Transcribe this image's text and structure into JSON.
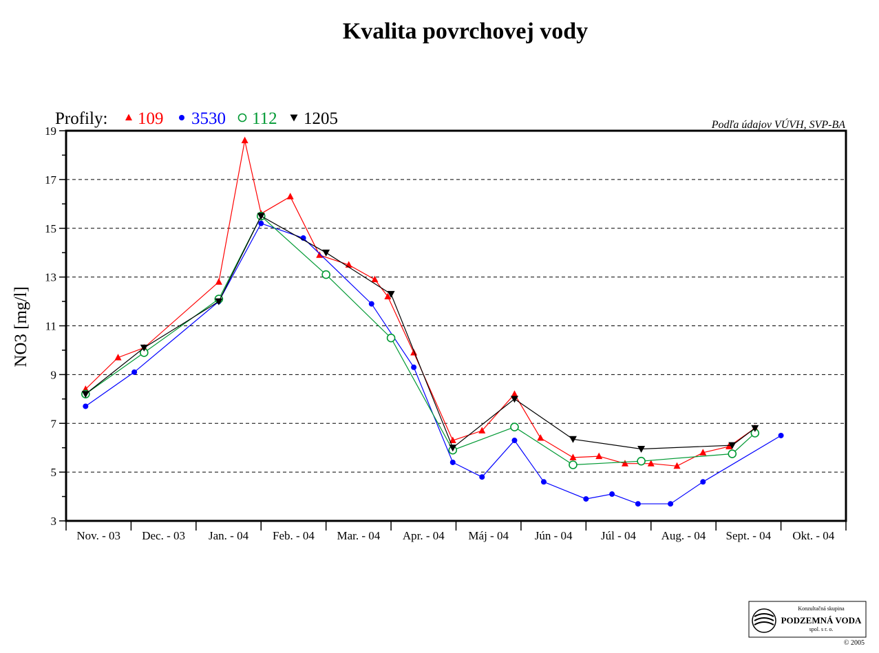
{
  "chart_data": {
    "type": "line",
    "title": "Kvalita povrchovej vody",
    "ylabel": "NO3 [mg/l]",
    "xlabel": "",
    "ylim": [
      3,
      19
    ],
    "yticks": [
      3,
      5,
      7,
      9,
      11,
      13,
      15,
      17,
      19
    ],
    "xlim": [
      0,
      12
    ],
    "categories": [
      "Nov. - 03",
      "Dec. - 03",
      "Jan. - 04",
      "Feb. - 04",
      "Mar. - 04",
      "Apr. - 04",
      "Máj - 04",
      "Jún - 04",
      "Júl - 04",
      "Aug. - 04",
      "Sept. - 04",
      "Okt. - 04"
    ],
    "grid": "horizontal dashed",
    "legend_prefix": "Profily:",
    "source_note": "Podľa údajov VÚVH, SVP-BA",
    "series": [
      {
        "name": "109",
        "color": "#ff0000",
        "marker": "triangle-up",
        "points": [
          [
            0.3,
            8.4
          ],
          [
            0.8,
            9.7
          ],
          [
            1.2,
            10.1
          ],
          [
            2.35,
            12.8
          ],
          [
            2.75,
            18.6
          ],
          [
            3.0,
            15.6
          ],
          [
            3.45,
            16.3
          ],
          [
            3.9,
            13.9
          ],
          [
            4.35,
            13.5
          ],
          [
            4.75,
            12.9
          ],
          [
            4.95,
            12.2
          ],
          [
            5.35,
            9.9
          ],
          [
            5.95,
            6.3
          ],
          [
            6.4,
            6.7
          ],
          [
            6.9,
            8.2
          ],
          [
            7.3,
            6.4
          ],
          [
            7.8,
            5.6
          ],
          [
            8.2,
            5.65
          ],
          [
            8.6,
            5.35
          ],
          [
            9.0,
            5.35
          ],
          [
            9.4,
            5.25
          ],
          [
            9.8,
            5.8
          ],
          [
            10.2,
            6.05
          ],
          [
            10.6,
            6.8
          ]
        ]
      },
      {
        "name": "3530",
        "color": "#0000ff",
        "marker": "circle-filled",
        "points": [
          [
            0.3,
            7.7
          ],
          [
            1.05,
            9.1
          ],
          [
            2.35,
            12.0
          ],
          [
            3.0,
            15.2
          ],
          [
            3.65,
            14.6
          ],
          [
            4.7,
            11.9
          ],
          [
            5.35,
            9.3
          ],
          [
            5.95,
            5.4
          ],
          [
            6.4,
            4.8
          ],
          [
            6.9,
            6.3
          ],
          [
            7.35,
            4.6
          ],
          [
            8.0,
            3.9
          ],
          [
            8.4,
            4.1
          ],
          [
            8.8,
            3.7
          ],
          [
            9.3,
            3.7
          ],
          [
            9.8,
            4.6
          ],
          [
            11.0,
            6.5
          ]
        ]
      },
      {
        "name": "112",
        "color": "#009933",
        "marker": "circle-open",
        "points": [
          [
            0.3,
            8.2
          ],
          [
            1.2,
            9.9
          ],
          [
            2.35,
            12.1
          ],
          [
            3.0,
            15.5
          ],
          [
            4.0,
            13.1
          ],
          [
            5.0,
            10.5
          ],
          [
            5.95,
            5.9
          ],
          [
            6.9,
            6.85
          ],
          [
            7.8,
            5.3
          ],
          [
            8.85,
            5.45
          ],
          [
            10.25,
            5.75
          ],
          [
            10.6,
            6.6
          ]
        ]
      },
      {
        "name": "1205",
        "color": "#000000",
        "marker": "triangle-down",
        "points": [
          [
            0.3,
            8.2
          ],
          [
            1.2,
            10.1
          ],
          [
            2.35,
            12.0
          ],
          [
            3.0,
            15.5
          ],
          [
            4.0,
            14.0
          ],
          [
            5.0,
            12.3
          ],
          [
            5.95,
            6.0
          ],
          [
            6.9,
            8.0
          ],
          [
            7.8,
            6.35
          ],
          [
            8.85,
            5.95
          ],
          [
            10.25,
            6.1
          ],
          [
            10.6,
            6.8
          ]
        ]
      }
    ]
  },
  "logo": {
    "line1": "Konzultačná skupina",
    "line2": "PODZEMNÁ VODA",
    "line3": "spol. s r. o."
  },
  "copyright": "© 2005"
}
